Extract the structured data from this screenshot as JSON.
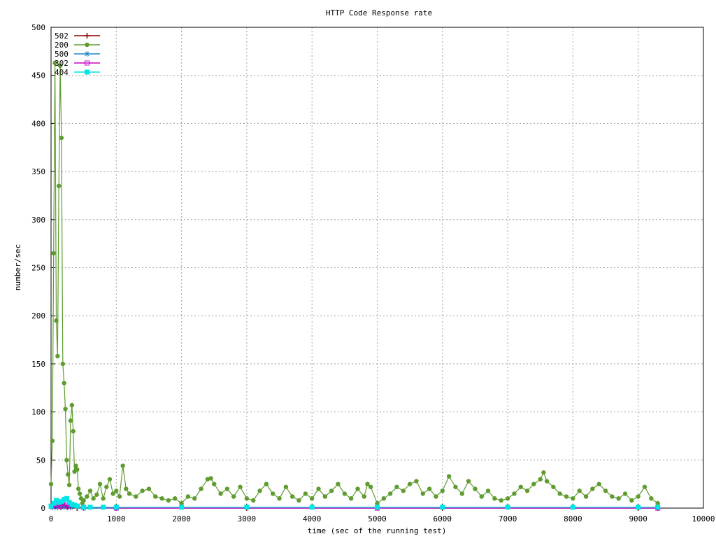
{
  "chart_data": {
    "type": "line",
    "title": "HTTP Code Response rate",
    "xlabel": "time (sec of the running test)",
    "ylabel": "number/sec",
    "xlim": [
      0,
      10000
    ],
    "ylim": [
      0,
      500
    ],
    "x_ticks": [
      0,
      1000,
      2000,
      3000,
      4000,
      5000,
      6000,
      7000,
      8000,
      9000,
      10000
    ],
    "y_ticks": [
      0,
      50,
      100,
      150,
      200,
      250,
      300,
      350,
      400,
      450,
      500
    ],
    "grid": true,
    "legend_position": "top-left",
    "series": [
      {
        "name": "502",
        "color": "#8b0000",
        "marker": "plus",
        "x": [
          20,
          60,
          100,
          150,
          200,
          250,
          300,
          400,
          500,
          1000,
          3000,
          6000,
          9000,
          9300
        ],
        "y": [
          1,
          2,
          1,
          1,
          2,
          1,
          1,
          0,
          0,
          0,
          0,
          0,
          0,
          0
        ]
      },
      {
        "name": "200",
        "color": "#5e9c2f",
        "marker": "filled-circle",
        "x": [
          0,
          20,
          40,
          60,
          80,
          100,
          120,
          140,
          160,
          180,
          200,
          220,
          240,
          260,
          280,
          300,
          320,
          340,
          360,
          380,
          400,
          420,
          440,
          460,
          480,
          500,
          550,
          600,
          650,
          700,
          750,
          800,
          850,
          900,
          950,
          1000,
          1050,
          1100,
          1150,
          1200,
          1300,
          1400,
          1500,
          1600,
          1700,
          1800,
          1900,
          2000,
          2100,
          2200,
          2300,
          2400,
          2450,
          2500,
          2600,
          2700,
          2800,
          2900,
          3000,
          3100,
          3200,
          3300,
          3400,
          3500,
          3600,
          3700,
          3800,
          3900,
          4000,
          4100,
          4200,
          4300,
          4400,
          4500,
          4600,
          4700,
          4800,
          4850,
          4900,
          5000,
          5100,
          5200,
          5300,
          5400,
          5500,
          5600,
          5700,
          5800,
          5900,
          6000,
          6100,
          6200,
          6300,
          6400,
          6500,
          6600,
          6700,
          6800,
          6900,
          7000,
          7100,
          7200,
          7300,
          7400,
          7500,
          7550,
          7600,
          7700,
          7800,
          7900,
          8000,
          8100,
          8200,
          8300,
          8400,
          8500,
          8600,
          8700,
          8800,
          8900,
          9000,
          9100,
          9200,
          9300
        ],
        "y": [
          25,
          70,
          265,
          463,
          195,
          158,
          335,
          460,
          385,
          150,
          130,
          103,
          50,
          35,
          24,
          91,
          107,
          80,
          38,
          44,
          40,
          20,
          15,
          10,
          5,
          8,
          12,
          18,
          10,
          14,
          25,
          10,
          22,
          30,
          15,
          18,
          12,
          44,
          20,
          15,
          12,
          18,
          20,
          12,
          10,
          8,
          10,
          5,
          12,
          10,
          20,
          30,
          31,
          25,
          15,
          20,
          12,
          22,
          10,
          8,
          18,
          25,
          15,
          10,
          22,
          12,
          8,
          15,
          10,
          20,
          12,
          18,
          25,
          15,
          10,
          20,
          12,
          25,
          22,
          5,
          10,
          15,
          22,
          18,
          25,
          28,
          15,
          20,
          12,
          18,
          33,
          22,
          15,
          28,
          20,
          12,
          18,
          10,
          8,
          10,
          15,
          22,
          18,
          25,
          30,
          37,
          28,
          22,
          15,
          12,
          10,
          18,
          12,
          20,
          25,
          18,
          12,
          10,
          15,
          8,
          12,
          22,
          10,
          5
        ]
      },
      {
        "name": "500",
        "color": "#1a87c9",
        "marker": "star",
        "x": [
          20,
          60,
          100,
          150,
          200,
          300,
          500,
          1000,
          5000,
          9300
        ],
        "y": [
          1,
          2,
          1,
          2,
          1,
          1,
          0,
          0,
          0,
          0
        ]
      },
      {
        "name": "302",
        "color": "#cc00cc",
        "marker": "open-square",
        "x": [
          20,
          60,
          100,
          140,
          180,
          220,
          260,
          300,
          400,
          500,
          1000,
          5000,
          9300
        ],
        "y": [
          2,
          4,
          3,
          2,
          5,
          3,
          2,
          4,
          2,
          1,
          0,
          0,
          0
        ]
      },
      {
        "name": "404",
        "color": "#00e5e5",
        "marker": "filled-square",
        "x": [
          0,
          40,
          80,
          120,
          160,
          200,
          240,
          280,
          320,
          360,
          400,
          500,
          600,
          800,
          1000,
          2000,
          3000,
          4000,
          5000,
          6000,
          7000,
          8000,
          9000,
          9300
        ],
        "y": [
          2,
          5,
          8,
          6,
          7,
          9,
          10,
          6,
          4,
          3,
          2,
          1,
          1,
          1,
          1,
          1,
          1,
          1,
          1,
          1,
          1,
          1,
          1,
          1
        ]
      }
    ]
  }
}
